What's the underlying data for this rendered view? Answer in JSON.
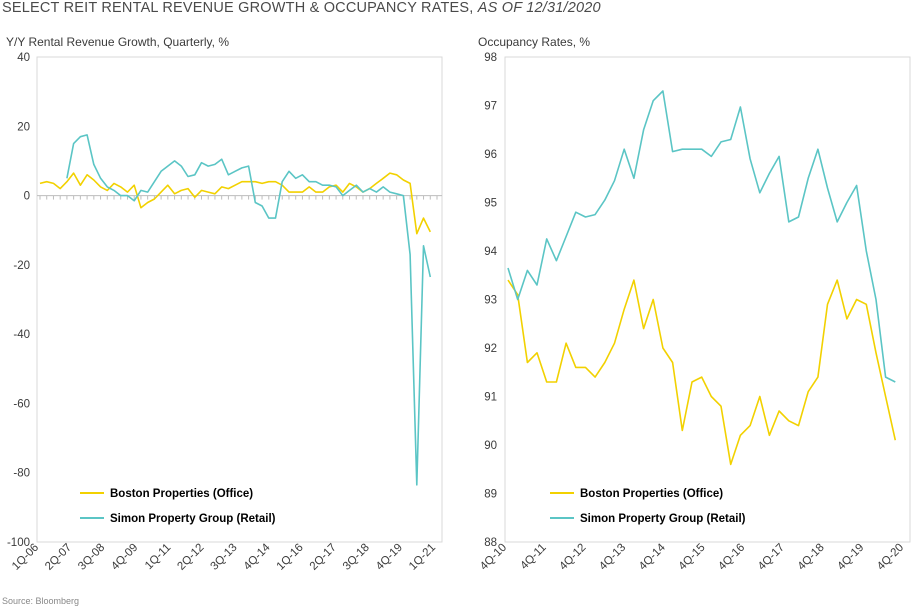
{
  "title": {
    "main": "SELECT REIT RENTAL REVENUE GROWTH & OCCUPANCY RATES,",
    "italic": "AS OF 12/31/2020"
  },
  "source": "Source: Bloomberg",
  "colors": {
    "boston": "#f2d100",
    "simon": "#5bc5c5",
    "axis": "#bdbdbd",
    "frame": "#d9d9d9"
  },
  "chart_data": [
    {
      "type": "line",
      "ylabel": "Y/Y Rental Revenue Growth, Quarterly, %",
      "ylim": [
        -100,
        40
      ],
      "yticks": [
        "40",
        "20",
        "0",
        "-20",
        "-40",
        "-60",
        "-80",
        "-100"
      ],
      "xlim": [
        0,
        59
      ],
      "xtick_labels": [
        "1Q-06",
        "2Q-07",
        "3Q-08",
        "4Q-09",
        "1Q-11",
        "2Q-12",
        "3Q-13",
        "4Q-14",
        "1Q-16",
        "2Q-17",
        "3Q-18",
        "4Q-19",
        "1Q-21"
      ],
      "legend_placement": "bottom-left",
      "series": [
        {
          "name": "Boston Properties (Office)",
          "x_start": 0,
          "values": [
            3.5,
            4,
            3.5,
            2,
            4,
            6.5,
            3,
            6,
            4.5,
            2.5,
            1.5,
            3.5,
            2.5,
            1,
            3,
            -3.5,
            -2,
            -1,
            1,
            3,
            0.5,
            1.5,
            2,
            -0.5,
            1.5,
            1,
            0.5,
            2.5,
            2,
            3,
            4,
            4,
            4,
            3.5,
            4,
            4,
            3,
            1,
            1,
            1,
            2.5,
            1,
            1,
            2.5,
            3,
            1,
            3.5,
            2.5,
            1,
            2,
            3.5,
            5,
            6.5,
            6,
            4.5,
            3.5,
            -11,
            -6.5,
            -10.5
          ]
        },
        {
          "name": "Simon Property Group (Retail)",
          "x_start": 4,
          "values": [
            5,
            15,
            17,
            17.5,
            9,
            5,
            2.5,
            1.5,
            0,
            0,
            -1.5,
            1.5,
            1,
            4,
            7,
            8.5,
            10,
            8.5,
            5.5,
            6,
            9.5,
            8.5,
            9,
            10.5,
            6,
            7,
            8,
            8.5,
            -2,
            -3,
            -6.5,
            -6.5,
            4,
            7,
            5,
            6,
            4,
            4,
            3,
            3,
            2.5,
            0,
            1.5,
            3,
            1,
            2,
            1,
            2.5,
            1,
            0.5,
            0,
            -17,
            -83.5,
            -14.5,
            -23.5
          ]
        }
      ]
    },
    {
      "type": "line",
      "ylabel": "Occupancy Rates, %",
      "ylim": [
        88,
        98
      ],
      "yticks": [
        "98",
        "97",
        "96",
        "95",
        "94",
        "93",
        "92",
        "91",
        "90",
        "89",
        "88"
      ],
      "xlim": [
        0,
        41
      ],
      "xtick_labels": [
        "4Q-10",
        "4Q-11",
        "4Q-12",
        "4Q-13",
        "4Q-14",
        "4Q-15",
        "4Q-16",
        "4Q-17",
        "4Q-18",
        "4Q-19",
        "4Q-20"
      ],
      "legend_placement": "bottom-left",
      "series": [
        {
          "name": "Boston Properties (Office)",
          "x_start": 0,
          "values": [
            93.4,
            93.1,
            91.7,
            91.9,
            91.3,
            91.3,
            92.1,
            91.6,
            91.6,
            91.4,
            91.7,
            92.1,
            92.8,
            93.4,
            92.4,
            93.0,
            92.0,
            91.7,
            90.3,
            91.3,
            91.4,
            91.0,
            90.8,
            89.6,
            90.2,
            90.4,
            91.0,
            90.2,
            90.7,
            90.5,
            90.4,
            91.1,
            91.4,
            92.9,
            93.4,
            92.6,
            93.0,
            92.9,
            91.9,
            91.0,
            90.1
          ]
        },
        {
          "name": "Simon Property Group (Retail)",
          "x_start": 0,
          "values": [
            93.65,
            93.0,
            93.6,
            93.3,
            94.25,
            93.8,
            94.3,
            94.8,
            94.7,
            94.75,
            95.05,
            95.45,
            96.1,
            95.5,
            96.5,
            97.1,
            97.3,
            96.05,
            96.1,
            96.1,
            96.1,
            95.95,
            96.25,
            96.3,
            96.97,
            95.9,
            95.2,
            95.6,
            95.95,
            94.6,
            94.7,
            95.5,
            96.1,
            95.3,
            94.6,
            95.0,
            95.35,
            94.0,
            93.0,
            91.4,
            91.3
          ]
        }
      ]
    }
  ]
}
